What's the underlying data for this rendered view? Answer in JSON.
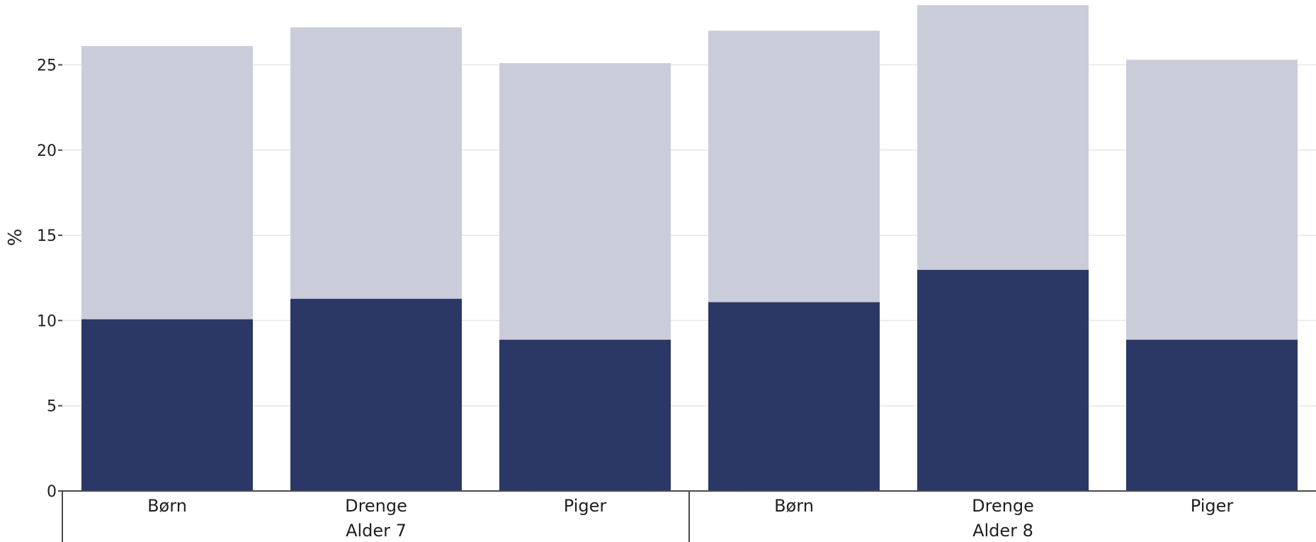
{
  "chart_data": {
    "type": "bar",
    "stacked": true,
    "ylabel": "%",
    "ylim": [
      0,
      29
    ],
    "yticks": [
      0,
      5,
      10,
      15,
      20,
      25
    ],
    "grid": true,
    "groups": [
      {
        "label": "Alder 7",
        "categories": [
          "Børn",
          "Drenge",
          "Piger"
        ]
      },
      {
        "label": "Alder 8",
        "categories": [
          "Børn",
          "Drenge",
          "Piger"
        ]
      }
    ],
    "categories": [
      "Børn",
      "Drenge",
      "Piger",
      "Børn",
      "Drenge",
      "Piger"
    ],
    "series": [
      {
        "values": [
          10.1,
          11.3,
          8.9,
          11.1,
          13.0,
          8.9
        ],
        "color": "#2b3765"
      },
      {
        "values": [
          16.0,
          15.9,
          16.2,
          15.9,
          15.5,
          16.4
        ],
        "color": "#cacdd9"
      }
    ]
  }
}
